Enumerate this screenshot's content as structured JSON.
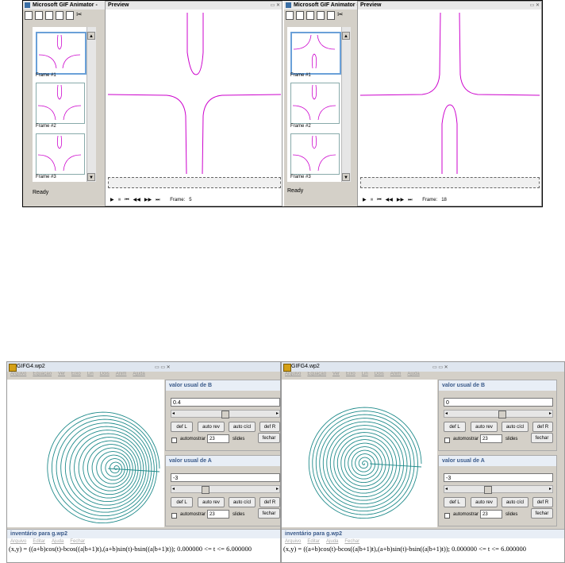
{
  "colors": {
    "curve_magenta": "#cc00cc",
    "spiral_teal": "#1f8a8a"
  },
  "gif_windows": [
    {
      "title": "Microsoft GIF Animator -",
      "preview_title": "Preview",
      "frames": [
        "Frame #1",
        "Frame #2",
        "Frame #3"
      ],
      "status": "Ready",
      "frame_label": "Frame:",
      "frame_value": "5",
      "controls": [
        "▶",
        "■",
        "⏮",
        "◀◀",
        "▶▶",
        "⏭"
      ]
    },
    {
      "title": "Microsoft GIF Animator -",
      "preview_title": "Preview",
      "frames": [
        "Frame #1",
        "Frame #2",
        "Frame #3"
      ],
      "status": "Ready",
      "frame_label": "Frame:",
      "frame_value": "18",
      "controls": [
        "▶",
        "■",
        "⏮",
        "◀◀",
        "▶▶",
        "⏭"
      ]
    }
  ],
  "curve_windows": [
    {
      "title": "GIFG4.wp2",
      "menu": [
        "Arquivo",
        "Equação",
        "Ver",
        "Eixo",
        "Lin",
        "Dois",
        "Anim",
        "Ajuda"
      ],
      "b_panel": {
        "title": "valor usual de B",
        "value": "0.4",
        "buttons": [
          "def L",
          "auto rev",
          "auto cícl",
          "def R"
        ],
        "auto_label": "automostrar",
        "slides_value": "23",
        "slides_label": "slides",
        "close": "fechar"
      },
      "a_panel": {
        "title": "valor usual de A",
        "value": "-3",
        "buttons": [
          "def L",
          "auto rev",
          "auto cícl",
          "def R"
        ],
        "auto_label": "automostrar",
        "slides_value": "23",
        "slides_label": "slides",
        "close": "fechar"
      },
      "inventory_title": "inventário para g.wp2",
      "inventory_menu": [
        "Arquivo",
        "Editar",
        "Ajuda",
        "Fechar"
      ],
      "formula": "(x,y) = ((a+b)cos(t)-bcos((a|b+1)t),(a+b)sin(t)-bsin((a|b+1)t)); 0.000000 <= t <= 6.000000"
    },
    {
      "title": "GIFG4.wp2",
      "menu": [
        "Arquivo",
        "Equação",
        "Ver",
        "Eixo",
        "Lin",
        "Dois",
        "Anim",
        "Ajuda"
      ],
      "b_panel": {
        "title": "valor usual de B",
        "value": "0",
        "buttons": [
          "def L",
          "auto rev",
          "auto cícl",
          "def R"
        ],
        "auto_label": "automostrar",
        "slides_value": "23",
        "slides_label": "slides",
        "close": "fechar"
      },
      "a_panel": {
        "title": "valor usual de A",
        "value": "-3",
        "buttons": [
          "def L",
          "auto rev",
          "auto cícl",
          "def R"
        ],
        "auto_label": "automostrar",
        "slides_value": "23",
        "slides_label": "slides",
        "close": "fechar"
      },
      "inventory_title": "inventário para g.wp2",
      "inventory_menu": [
        "Arquivo",
        "Editar",
        "Ajuda",
        "Fechar"
      ],
      "formula": "(x,y) = ((a+b)cos(t)-bcos((a|b+1)t),(a+b)sin(t)-bsin((a|b+1)t)); 0.000000 <= t <= 6.000000"
    }
  ]
}
